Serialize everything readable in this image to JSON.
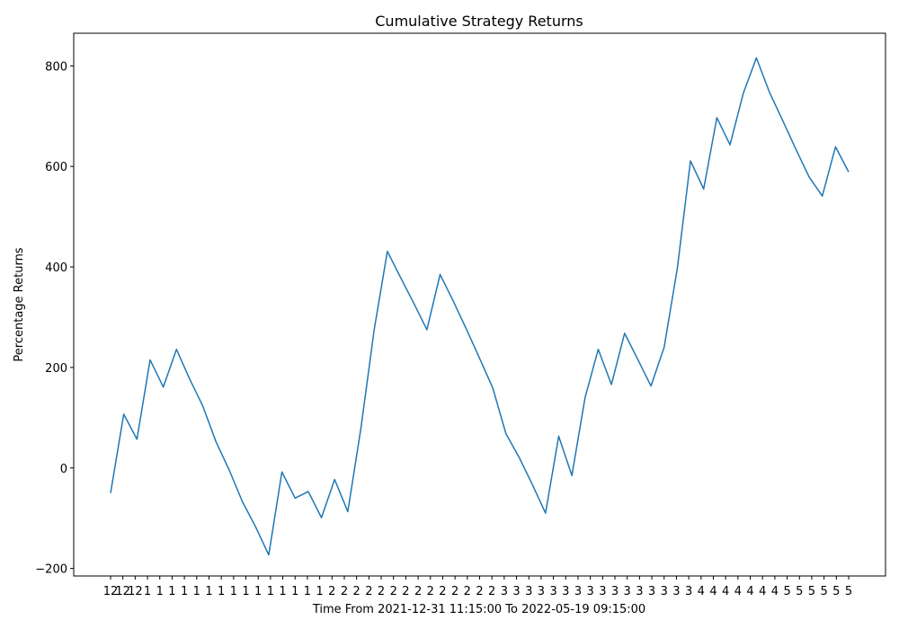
{
  "chart_data": {
    "type": "line",
    "title": "Cumulative Strategy Returns",
    "xlabel": "Time From 2021-12-31 11:15:00 To 2022-05-19 09:15:00",
    "ylabel": "Percentage Returns",
    "ylim": [
      -215,
      865
    ],
    "yticks": [
      -200,
      0,
      200,
      400,
      600,
      800
    ],
    "grid": false,
    "line_color": "#1f77b4",
    "x_tick_labels": [
      "12",
      "12",
      "12",
      "1",
      "1",
      "1",
      "1",
      "1",
      "1",
      "1",
      "1",
      "1",
      "1",
      "1",
      "1",
      "1",
      "1",
      "1",
      "2",
      "2",
      "2",
      "2",
      "2",
      "2",
      "2",
      "2",
      "2",
      "2",
      "2",
      "2",
      "2",
      "2",
      "3",
      "3",
      "3",
      "3",
      "3",
      "3",
      "3",
      "3",
      "3",
      "3",
      "3",
      "3",
      "3",
      "3",
      "3",
      "3",
      "4",
      "4",
      "4",
      "4",
      "4",
      "4",
      "4",
      "5",
      "5",
      "5",
      "5",
      "5",
      "5"
    ],
    "series": [
      {
        "values": [
          -50,
          107,
          57,
          215,
          161,
          236,
          177,
          123,
          52,
          -4,
          -67,
          -117,
          -173,
          -8,
          -60,
          -47,
          -99,
          -23,
          -87,
          80,
          275,
          431,
          379,
          328,
          275,
          385,
          332,
          276,
          218,
          159,
          68,
          21,
          -33,
          -90,
          63,
          -15,
          140,
          236,
          166,
          268,
          216,
          163,
          240,
          397,
          611,
          555,
          697,
          643,
          745,
          816,
          747,
          691,
          634,
          579,
          541,
          639,
          589
        ]
      }
    ]
  }
}
